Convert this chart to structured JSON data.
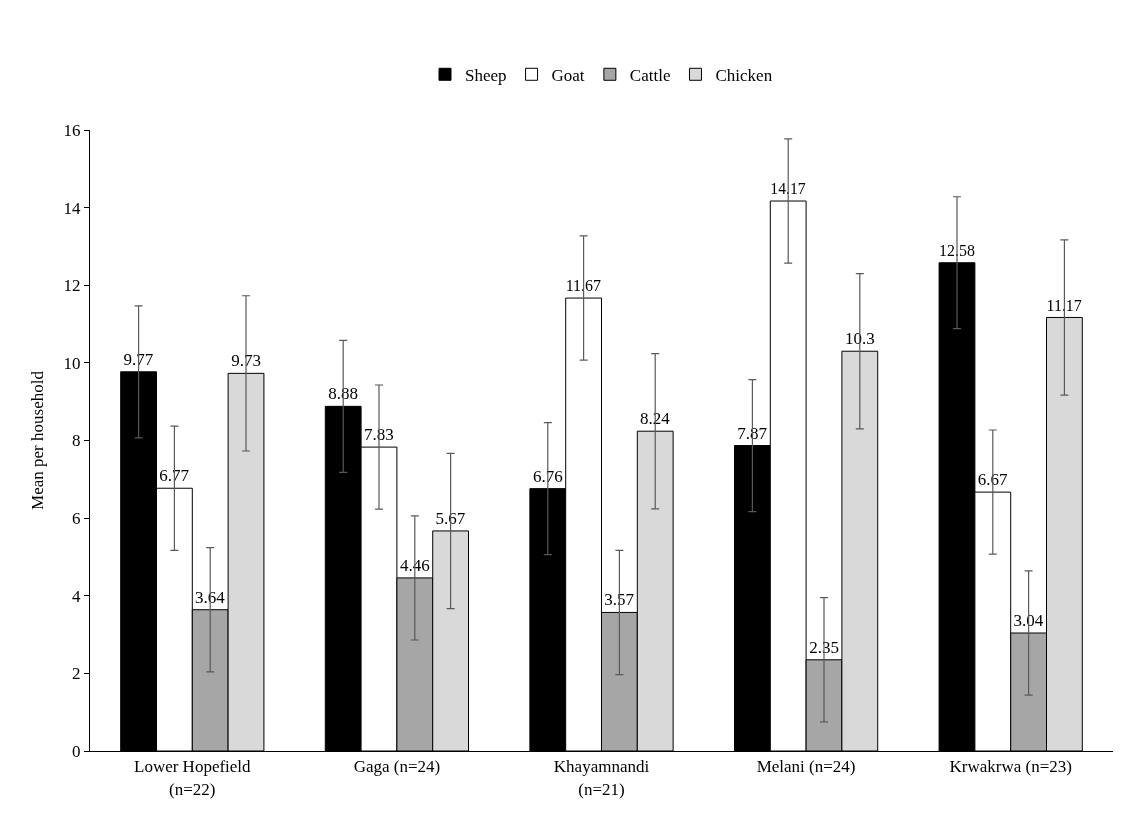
{
  "chart_data": {
    "type": "bar",
    "ylabel": "Mean per household",
    "categories": [
      "Lower Hopefield (n=22)",
      "Gaga (n=24)",
      "Khayamnandi (n=21)",
      "Melani (n=24)",
      "Krwakrwa (n=23)"
    ],
    "series": [
      {
        "name": "Sheep",
        "color": "#000000",
        "values": [
          9.77,
          8.88,
          6.76,
          7.87,
          12.58
        ],
        "errors": [
          1.7,
          1.7,
          1.7,
          1.7,
          1.7
        ]
      },
      {
        "name": "Goat",
        "color": "#ffffff",
        "values": [
          6.77,
          7.83,
          11.67,
          14.17,
          6.67
        ],
        "errors": [
          1.6,
          1.6,
          1.6,
          1.6,
          1.6
        ]
      },
      {
        "name": "Cattle",
        "color": "#a6a6a6",
        "values": [
          3.64,
          4.46,
          3.57,
          2.35,
          3.04
        ],
        "errors": [
          1.6,
          1.6,
          1.6,
          1.6,
          1.6
        ]
      },
      {
        "name": "Chicken",
        "color": "#d9d9d9",
        "values": [
          9.73,
          5.67,
          8.24,
          10.3,
          11.17
        ],
        "errors": [
          2.0,
          2.0,
          2.0,
          2.0,
          2.0
        ]
      }
    ],
    "ylim": [
      0,
      16
    ],
    "yticks": [
      0,
      2,
      4,
      6,
      8,
      10,
      12,
      14,
      16
    ],
    "data_labels": true,
    "legend": "top"
  }
}
